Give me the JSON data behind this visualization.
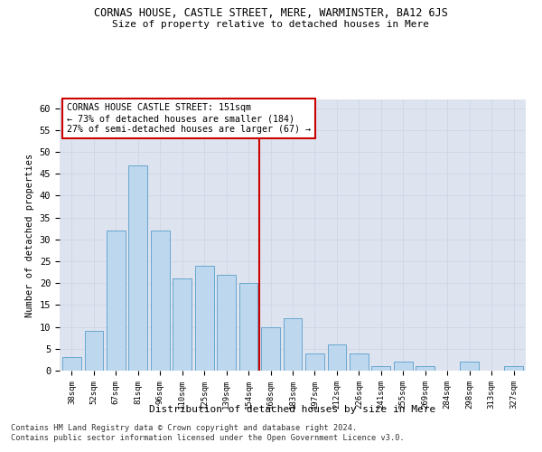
{
  "title": "CORNAS HOUSE, CASTLE STREET, MERE, WARMINSTER, BA12 6JS",
  "subtitle": "Size of property relative to detached houses in Mere",
  "xlabel": "Distribution of detached houses by size in Mere",
  "ylabel": "Number of detached properties",
  "categories": [
    "38sqm",
    "52sqm",
    "67sqm",
    "81sqm",
    "96sqm",
    "110sqm",
    "125sqm",
    "139sqm",
    "154sqm",
    "168sqm",
    "183sqm",
    "197sqm",
    "212sqm",
    "226sqm",
    "241sqm",
    "255sqm",
    "269sqm",
    "284sqm",
    "298sqm",
    "313sqm",
    "327sqm"
  ],
  "values": [
    3,
    9,
    32,
    47,
    32,
    21,
    24,
    22,
    20,
    10,
    12,
    4,
    6,
    4,
    1,
    2,
    1,
    0,
    2,
    0,
    1
  ],
  "bar_color": "#bdd7ee",
  "bar_edge_color": "#5a9ec9",
  "grid_color": "#d0d8e8",
  "background_color": "#dde4f0",
  "annotation_text": "CORNAS HOUSE CASTLE STREET: 151sqm\n← 73% of detached houses are smaller (184)\n27% of semi-detached houses are larger (67) →",
  "vline_x": 8.5,
  "vline_color": "#cc0000",
  "annotation_box_color": "#cc0000",
  "ylim": [
    0,
    62
  ],
  "yticks": [
    0,
    5,
    10,
    15,
    20,
    25,
    30,
    35,
    40,
    45,
    50,
    55,
    60
  ],
  "footer_line1": "Contains HM Land Registry data © Crown copyright and database right 2024.",
  "footer_line2": "Contains public sector information licensed under the Open Government Licence v3.0."
}
